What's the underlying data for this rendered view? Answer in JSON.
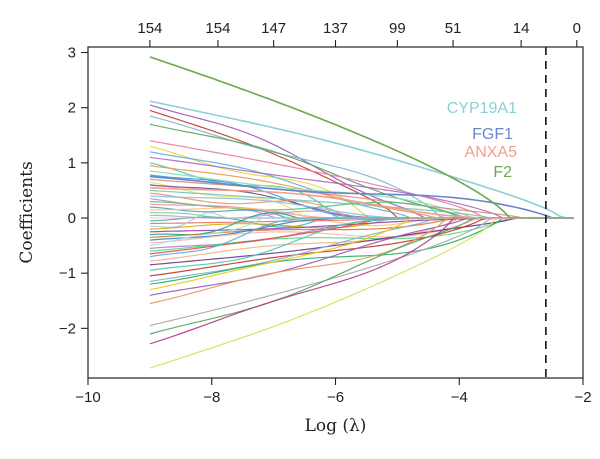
{
  "chart_data": {
    "type": "line",
    "title": "",
    "xlabel": "Log (λ)",
    "ylabel": "Coefficients",
    "xlim": [
      -10,
      -2
    ],
    "ylim": [
      -2.9,
      3.1
    ],
    "x_ticks": [
      -10,
      -8,
      -6,
      -4,
      -2
    ],
    "x_tick_labels": [
      "−10",
      "−8",
      "−6",
      "−4",
      "−2"
    ],
    "y_ticks": [
      -2,
      -1,
      0,
      1,
      2,
      3
    ],
    "y_tick_labels": [
      "−2",
      "−1",
      "0",
      "1",
      "2",
      "3"
    ],
    "top_axis": {
      "label": "",
      "ticks": [
        -9.0,
        -7.9,
        -7.0,
        -6.0,
        -5.0,
        -4.1,
        -3.0,
        -2.1
      ],
      "tick_labels": [
        "154",
        "154",
        "147",
        "137",
        "99",
        "51",
        "14",
        "0"
      ]
    },
    "cutoff_line": {
      "x": -2.6,
      "style": "dashed"
    },
    "path_x_range": [
      -9.0,
      -2.15
    ],
    "grid": false,
    "highlighted_genes": [
      {
        "name": "CYP19A1",
        "color": "#8ecfd6",
        "start": 2.12,
        "vanish_x": -2.35
      },
      {
        "name": "FGF1",
        "color": "#6b86c8",
        "start": 0.75,
        "vanish_x": -2.5
      },
      {
        "name": "ANXA5",
        "color": "#f0a090",
        "start": 0.55,
        "vanish_x": -2.65
      },
      {
        "name": "F2",
        "color": "#6aa84f",
        "start": 2.92,
        "vanish_x": -3.2
      }
    ],
    "series": [
      {
        "start": 2.05,
        "vanish_x": -4.6,
        "color": "#9b59b6"
      },
      {
        "start": 1.95,
        "vanish_x": -5.0,
        "color": "#c0392b"
      },
      {
        "start": 1.85,
        "vanish_x": -4.3,
        "color": "#7fb3d5"
      },
      {
        "start": 1.7,
        "vanish_x": -4.0,
        "color": "#58a55c"
      },
      {
        "start": 1.4,
        "vanish_x": -3.6,
        "color": "#e67e9f"
      },
      {
        "start": 1.3,
        "vanish_x": -5.5,
        "color": "#f4d03f"
      },
      {
        "start": 1.2,
        "vanish_x": -4.8,
        "color": "#5dade2"
      },
      {
        "start": 1.1,
        "vanish_x": -3.3,
        "color": "#a569bd"
      },
      {
        "start": 1.0,
        "vanish_x": -6.0,
        "color": "#48c9b0"
      },
      {
        "start": 0.95,
        "vanish_x": -4.4,
        "color": "#eb984e"
      },
      {
        "start": 0.85,
        "vanish_x": -3.8,
        "color": "#82e0aa"
      },
      {
        "start": 0.78,
        "vanish_x": -5.2,
        "color": "#3498db"
      },
      {
        "start": 0.7,
        "vanish_x": -3.0,
        "color": "#d98880"
      },
      {
        "start": 0.65,
        "vanish_x": -6.5,
        "color": "#f7dc6f"
      },
      {
        "start": 0.6,
        "vanish_x": -4.9,
        "color": "#76448a"
      },
      {
        "start": 0.5,
        "vanish_x": -3.5,
        "color": "#73c6b6"
      },
      {
        "start": 0.45,
        "vanish_x": -5.8,
        "color": "#e59866"
      },
      {
        "start": 0.4,
        "vanish_x": -4.2,
        "color": "#85c1e9"
      },
      {
        "start": 0.35,
        "vanish_x": -7.0,
        "color": "#bb8fce"
      },
      {
        "start": 0.3,
        "vanish_x": -3.9,
        "color": "#52be80"
      },
      {
        "start": 0.25,
        "vanish_x": -5.4,
        "color": "#f1948a"
      },
      {
        "start": 0.2,
        "vanish_x": -6.8,
        "color": "#5499c7"
      },
      {
        "start": 0.15,
        "vanish_x": -4.5,
        "color": "#f8c471"
      },
      {
        "start": 0.1,
        "vanish_x": -7.5,
        "color": "#7dcea0"
      },
      {
        "start": 0.05,
        "vanish_x": -5.6,
        "color": "#c39bd3"
      },
      {
        "start": -0.05,
        "vanish_x": -6.2,
        "color": "#45b39d"
      },
      {
        "start": -0.1,
        "vanish_x": -4.7,
        "color": "#ec7063"
      },
      {
        "start": -0.15,
        "vanish_x": -7.8,
        "color": "#a9cce3"
      },
      {
        "start": -0.2,
        "vanish_x": -5.1,
        "color": "#d4ac0d"
      },
      {
        "start": -0.25,
        "vanish_x": -3.4,
        "color": "#8e44ad"
      },
      {
        "start": -0.3,
        "vanish_x": -6.6,
        "color": "#17a589"
      },
      {
        "start": -0.35,
        "vanish_x": -4.1,
        "color": "#dc7633"
      },
      {
        "start": -0.4,
        "vanish_x": -5.9,
        "color": "#2e86c1"
      },
      {
        "start": -0.45,
        "vanish_x": -3.7,
        "color": "#f5b7b1"
      },
      {
        "start": -0.5,
        "vanish_x": -7.2,
        "color": "#a3e4d7"
      },
      {
        "start": -0.55,
        "vanish_x": -4.6,
        "color": "#af7ac5"
      },
      {
        "start": -0.6,
        "vanish_x": -3.2,
        "color": "#58d68d"
      },
      {
        "start": -0.65,
        "vanish_x": -5.3,
        "color": "#e74c3c"
      },
      {
        "start": -0.7,
        "vanish_x": -6.4,
        "color": "#5dade2"
      },
      {
        "start": -0.78,
        "vanish_x": -4.0,
        "color": "#f0b27a"
      },
      {
        "start": -0.85,
        "vanish_x": -3.1,
        "color": "#6c3483"
      },
      {
        "start": -0.95,
        "vanish_x": -5.0,
        "color": "#48c9b0"
      },
      {
        "start": -1.05,
        "vanish_x": -3.6,
        "color": "#c0392b"
      },
      {
        "start": -1.15,
        "vanish_x": -4.4,
        "color": "#7fb3d5"
      },
      {
        "start": -1.2,
        "vanish_x": -3.3,
        "color": "#27ae60"
      },
      {
        "start": -1.3,
        "vanish_x": -4.8,
        "color": "#f1c40f"
      },
      {
        "start": -1.4,
        "vanish_x": -3.9,
        "color": "#9b59b6"
      },
      {
        "start": -1.55,
        "vanish_x": -4.2,
        "color": "#e59866"
      },
      {
        "start": -1.95,
        "vanish_x": -3.5,
        "color": "#a9a9a9"
      },
      {
        "start": -2.1,
        "vanish_x": -3.8,
        "color": "#52a45c"
      },
      {
        "start": -2.28,
        "vanish_x": -4.1,
        "color": "#b03a8a"
      },
      {
        "start": -2.72,
        "vanish_x": -3.4,
        "color": "#d4e157"
      }
    ]
  }
}
